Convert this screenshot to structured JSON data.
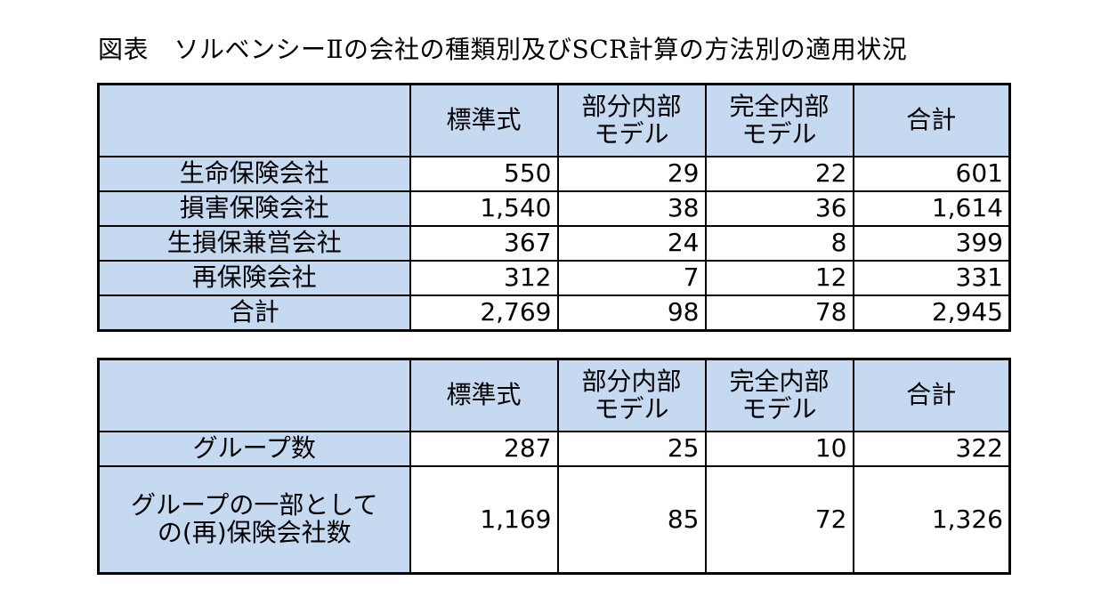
{
  "title": "図表　ソルベンシーⅡの会社の種類別及びSCR計算の方法別の適用状況",
  "table1": {
    "headers": [
      "",
      "標準式",
      "部分内部\nモデル",
      "完全内部\nモデル",
      "合計"
    ],
    "rows": [
      {
        "label": "生命保険会社",
        "values": [
          "550",
          "29",
          "22",
          "601"
        ]
      },
      {
        "label": "損害保険会社",
        "values": [
          "1,540",
          "38",
          "36",
          "1,614"
        ]
      },
      {
        "label": "生損保兼営会社",
        "values": [
          "367",
          "24",
          "8",
          "399"
        ]
      },
      {
        "label": "再保険会社",
        "values": [
          "312",
          "7",
          "12",
          "331"
        ]
      },
      {
        "label": "合計",
        "values": [
          "2,769",
          "98",
          "78",
          "2,945"
        ]
      }
    ]
  },
  "table2": {
    "headers": [
      "",
      "標準式",
      "部分内部\nモデル",
      "完全内部\nモデル",
      "合計"
    ],
    "rows": [
      {
        "label": "グループ数",
        "values": [
          "287",
          "25",
          "10",
          "322"
        ]
      },
      {
        "label": "グループの一部としての(再)保険会社数",
        "label_lines": [
          "グループの一部として",
          "の(再)保険会社数"
        ],
        "values": [
          "1,169",
          "85",
          "72",
          "1,326"
        ]
      }
    ]
  }
}
